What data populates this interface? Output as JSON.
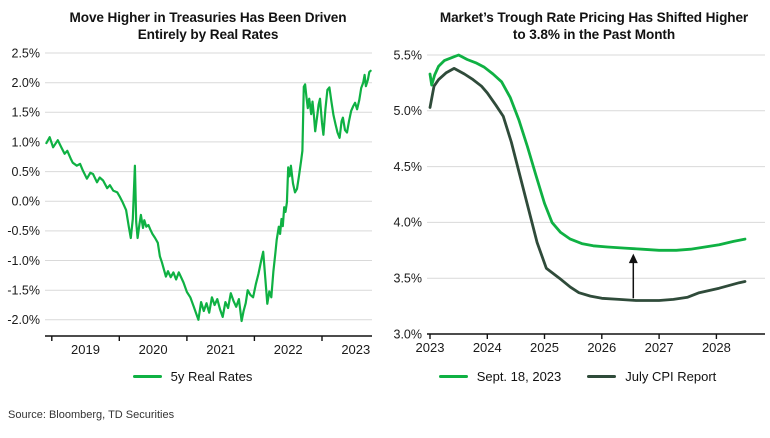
{
  "page": {
    "source": "Source: Bloomberg, TD Securities"
  },
  "colors": {
    "bright_green": "#0fb143",
    "dark_green": "#2f4b3a",
    "grid": "#d9d9d9",
    "axis": "#111111",
    "text": "#1a1a1a"
  },
  "chart_data": [
    {
      "type": "line",
      "title": "Move Higher in Treasuries Has Been Driven Entirely by Real Rates",
      "title_lines": [
        "Move Higher in Treasuries Has Been Driven",
        "Entirely by Real Rates"
      ],
      "xlim": [
        2018.9,
        2023.74
      ],
      "ylim": [
        -2.3,
        2.5
      ],
      "grid": true,
      "legend_position": "bottom-center",
      "x_label_position": "between",
      "yticks": [
        {
          "v": 2.5,
          "label": "2.5%"
        },
        {
          "v": 2.0,
          "label": "2.0%"
        },
        {
          "v": 1.5,
          "label": "1.5%"
        },
        {
          "v": 1.0,
          "label": "1.0%"
        },
        {
          "v": 0.5,
          "label": "0.5%"
        },
        {
          "v": 0.0,
          "label": "0.0%"
        },
        {
          "v": -0.5,
          "label": "-0.5%"
        },
        {
          "v": -1.0,
          "label": "-1.0%"
        },
        {
          "v": -1.5,
          "label": "-1.5%"
        },
        {
          "v": -2.0,
          "label": "-2.0%"
        }
      ],
      "xticks": [
        {
          "v": 2019,
          "label": "2019"
        },
        {
          "v": 2020,
          "label": "2020"
        },
        {
          "v": 2021,
          "label": "2021"
        },
        {
          "v": 2022,
          "label": "2022"
        },
        {
          "v": 2023,
          "label": "2023"
        }
      ],
      "legend": [
        {
          "label": "5y Real Rates",
          "color": "#0fb143"
        }
      ],
      "series": [
        {
          "name": "5y Real Rates",
          "color": "#0fb143",
          "points": [
            [
              2018.92,
              0.98
            ],
            [
              2018.97,
              1.08
            ],
            [
              2019.02,
              0.91
            ],
            [
              2019.09,
              1.03
            ],
            [
              2019.15,
              0.89
            ],
            [
              2019.19,
              0.8
            ],
            [
              2019.23,
              0.85
            ],
            [
              2019.28,
              0.72
            ],
            [
              2019.31,
              0.65
            ],
            [
              2019.37,
              0.6
            ],
            [
              2019.42,
              0.63
            ],
            [
              2019.46,
              0.52
            ],
            [
              2019.52,
              0.38
            ],
            [
              2019.57,
              0.48
            ],
            [
              2019.61,
              0.46
            ],
            [
              2019.67,
              0.32
            ],
            [
              2019.71,
              0.4
            ],
            [
              2019.76,
              0.35
            ],
            [
              2019.82,
              0.22
            ],
            [
              2019.86,
              0.27
            ],
            [
              2019.91,
              0.18
            ],
            [
              2019.97,
              0.15
            ],
            [
              2020.01,
              0.07
            ],
            [
              2020.05,
              -0.02
            ],
            [
              2020.1,
              -0.15
            ],
            [
              2020.14,
              -0.43
            ],
            [
              2020.17,
              -0.62
            ],
            [
              2020.2,
              -0.3
            ],
            [
              2020.23,
              0.6
            ],
            [
              2020.25,
              -0.35
            ],
            [
              2020.27,
              -0.62
            ],
            [
              2020.3,
              -0.37
            ],
            [
              2020.32,
              -0.23
            ],
            [
              2020.35,
              -0.45
            ],
            [
              2020.37,
              -0.32
            ],
            [
              2020.4,
              -0.43
            ],
            [
              2020.43,
              -0.4
            ],
            [
              2020.46,
              -0.48
            ],
            [
              2020.49,
              -0.55
            ],
            [
              2020.53,
              -0.62
            ],
            [
              2020.57,
              -0.7
            ],
            [
              2020.6,
              -0.93
            ],
            [
              2020.63,
              -1.03
            ],
            [
              2020.66,
              -1.15
            ],
            [
              2020.69,
              -1.27
            ],
            [
              2020.72,
              -1.18
            ],
            [
              2020.76,
              -1.28
            ],
            [
              2020.8,
              -1.2
            ],
            [
              2020.84,
              -1.32
            ],
            [
              2020.88,
              -1.2
            ],
            [
              2020.91,
              -1.27
            ],
            [
              2020.95,
              -1.37
            ],
            [
              2021.0,
              -1.53
            ],
            [
              2021.05,
              -1.62
            ],
            [
              2021.1,
              -1.77
            ],
            [
              2021.14,
              -1.9
            ],
            [
              2021.17,
              -2.0
            ],
            [
              2021.21,
              -1.7
            ],
            [
              2021.25,
              -1.85
            ],
            [
              2021.29,
              -1.72
            ],
            [
              2021.33,
              -1.88
            ],
            [
              2021.37,
              -1.62
            ],
            [
              2021.41,
              -1.75
            ],
            [
              2021.45,
              -1.65
            ],
            [
              2021.49,
              -1.82
            ],
            [
              2021.53,
              -1.95
            ],
            [
              2021.57,
              -1.7
            ],
            [
              2021.61,
              -1.8
            ],
            [
              2021.65,
              -1.55
            ],
            [
              2021.69,
              -1.68
            ],
            [
              2021.73,
              -1.78
            ],
            [
              2021.77,
              -1.65
            ],
            [
              2021.81,
              -2.02
            ],
            [
              2021.84,
              -1.85
            ],
            [
              2021.87,
              -1.72
            ],
            [
              2021.9,
              -1.5
            ],
            [
              2021.94,
              -1.58
            ],
            [
              2021.98,
              -1.62
            ],
            [
              2022.02,
              -1.4
            ],
            [
              2022.06,
              -1.22
            ],
            [
              2022.1,
              -1.0
            ],
            [
              2022.13,
              -0.85
            ],
            [
              2022.16,
              -1.3
            ],
            [
              2022.19,
              -1.73
            ],
            [
              2022.22,
              -1.52
            ],
            [
              2022.25,
              -1.62
            ],
            [
              2022.28,
              -1.18
            ],
            [
              2022.31,
              -0.87
            ],
            [
              2022.33,
              -0.65
            ],
            [
              2022.36,
              -0.43
            ],
            [
              2022.38,
              -0.55
            ],
            [
              2022.4,
              -0.3
            ],
            [
              2022.42,
              -0.42
            ],
            [
              2022.44,
              -0.1
            ],
            [
              2022.46,
              -0.18
            ],
            [
              2022.48,
              -0.02
            ],
            [
              2022.5,
              0.57
            ],
            [
              2022.52,
              0.42
            ],
            [
              2022.54,
              0.6
            ],
            [
              2022.57,
              0.3
            ],
            [
              2022.6,
              0.15
            ],
            [
              2022.63,
              0.21
            ],
            [
              2022.66,
              0.43
            ],
            [
              2022.69,
              0.68
            ],
            [
              2022.71,
              0.85
            ],
            [
              2022.73,
              1.93
            ],
            [
              2022.75,
              1.97
            ],
            [
              2022.77,
              1.75
            ],
            [
              2022.79,
              1.57
            ],
            [
              2022.81,
              1.73
            ],
            [
              2022.84,
              1.47
            ],
            [
              2022.86,
              1.68
            ],
            [
              2022.88,
              1.45
            ],
            [
              2022.9,
              1.18
            ],
            [
              2022.93,
              1.45
            ],
            [
              2022.95,
              1.63
            ],
            [
              2022.97,
              1.73
            ],
            [
              2023.0,
              1.32
            ],
            [
              2023.02,
              1.12
            ],
            [
              2023.05,
              1.55
            ],
            [
              2023.08,
              1.88
            ],
            [
              2023.11,
              1.92
            ],
            [
              2023.14,
              1.67
            ],
            [
              2023.17,
              1.45
            ],
            [
              2023.2,
              1.3
            ],
            [
              2023.23,
              1.16
            ],
            [
              2023.26,
              1.07
            ],
            [
              2023.29,
              1.35
            ],
            [
              2023.31,
              1.41
            ],
            [
              2023.34,
              1.2
            ],
            [
              2023.37,
              1.16
            ],
            [
              2023.4,
              1.35
            ],
            [
              2023.43,
              1.52
            ],
            [
              2023.46,
              1.6
            ],
            [
              2023.49,
              1.66
            ],
            [
              2023.52,
              1.55
            ],
            [
              2023.55,
              1.7
            ],
            [
              2023.58,
              1.91
            ],
            [
              2023.61,
              2.0
            ],
            [
              2023.63,
              2.13
            ],
            [
              2023.65,
              1.94
            ],
            [
              2023.68,
              2.05
            ],
            [
              2023.7,
              2.18
            ],
            [
              2023.72,
              2.2
            ]
          ]
        }
      ]
    },
    {
      "type": "line",
      "title": "Market’s Trough Rate Pricing Has Shifted Higher to 3.8% in the Past Month",
      "title_lines": [
        "Market’s Trough Rate Pricing Has Shifted Higher",
        "to 3.8% in the Past Month"
      ],
      "xlim": [
        2023,
        2028.5
      ],
      "ylim": [
        3.0,
        5.5
      ],
      "grid": true,
      "legend_position": "bottom-center",
      "x_label_position": "on",
      "yticks": [
        {
          "v": 5.5,
          "label": "5.5%"
        },
        {
          "v": 5.0,
          "label": "5.0%"
        },
        {
          "v": 4.5,
          "label": "4.5%"
        },
        {
          "v": 4.0,
          "label": "4.0%"
        },
        {
          "v": 3.5,
          "label": "3.5%"
        },
        {
          "v": 3.0,
          "label": "3.0%",
          "grid": false
        }
      ],
      "xticks": [
        {
          "v": 2023,
          "label": "2023"
        },
        {
          "v": 2024,
          "label": "2024"
        },
        {
          "v": 2025,
          "label": "2025"
        },
        {
          "v": 2026,
          "label": "2026"
        },
        {
          "v": 2027,
          "label": "2027"
        },
        {
          "v": 2028,
          "label": "2028"
        }
      ],
      "legend": [
        {
          "label": "Sept. 18, 2023",
          "color": "#0fb143"
        },
        {
          "label": "July CPI Report",
          "color": "#2f4b3a"
        }
      ],
      "annotation": {
        "type": "arrow-up",
        "x": 2026.55,
        "from": 3.32,
        "to": 3.72
      },
      "series": [
        {
          "name": "Sept. 18, 2023",
          "color": "#0fb143",
          "points": [
            [
              2023.0,
              5.33
            ],
            [
              2023.03,
              5.23
            ],
            [
              2023.08,
              5.32
            ],
            [
              2023.15,
              5.4
            ],
            [
              2023.25,
              5.45
            ],
            [
              2023.4,
              5.48
            ],
            [
              2023.5,
              5.5
            ],
            [
              2023.65,
              5.46
            ],
            [
              2023.8,
              5.43
            ],
            [
              2023.95,
              5.39
            ],
            [
              2024.1,
              5.33
            ],
            [
              2024.25,
              5.26
            ],
            [
              2024.4,
              5.12
            ],
            [
              2024.55,
              4.92
            ],
            [
              2024.7,
              4.68
            ],
            [
              2024.85,
              4.42
            ],
            [
              2025.0,
              4.17
            ],
            [
              2025.13,
              4.0
            ],
            [
              2025.28,
              3.91
            ],
            [
              2025.45,
              3.85
            ],
            [
              2025.65,
              3.81
            ],
            [
              2025.85,
              3.79
            ],
            [
              2026.1,
              3.78
            ],
            [
              2026.4,
              3.77
            ],
            [
              2026.7,
              3.76
            ],
            [
              2027.0,
              3.75
            ],
            [
              2027.3,
              3.75
            ],
            [
              2027.55,
              3.76
            ],
            [
              2027.8,
              3.78
            ],
            [
              2028.05,
              3.8
            ],
            [
              2028.3,
              3.83
            ],
            [
              2028.5,
              3.85
            ]
          ]
        },
        {
          "name": "July CPI Report",
          "color": "#2f4b3a",
          "points": [
            [
              2023.0,
              5.03
            ],
            [
              2023.07,
              5.22
            ],
            [
              2023.15,
              5.28
            ],
            [
              2023.28,
              5.34
            ],
            [
              2023.42,
              5.38
            ],
            [
              2023.6,
              5.33
            ],
            [
              2023.75,
              5.28
            ],
            [
              2023.9,
              5.22
            ],
            [
              2024.0,
              5.16
            ],
            [
              2024.15,
              5.05
            ],
            [
              2024.28,
              4.95
            ],
            [
              2024.42,
              4.72
            ],
            [
              2024.57,
              4.42
            ],
            [
              2024.72,
              4.12
            ],
            [
              2024.87,
              3.82
            ],
            [
              2025.03,
              3.59
            ],
            [
              2025.26,
              3.5
            ],
            [
              2025.45,
              3.42
            ],
            [
              2025.6,
              3.37
            ],
            [
              2025.8,
              3.34
            ],
            [
              2026.0,
              3.32
            ],
            [
              2026.3,
              3.31
            ],
            [
              2026.6,
              3.3
            ],
            [
              2027.0,
              3.3
            ],
            [
              2027.25,
              3.31
            ],
            [
              2027.5,
              3.33
            ],
            [
              2027.7,
              3.37
            ],
            [
              2028.05,
              3.41
            ],
            [
              2028.4,
              3.46
            ],
            [
              2028.5,
              3.47
            ]
          ]
        }
      ]
    }
  ]
}
